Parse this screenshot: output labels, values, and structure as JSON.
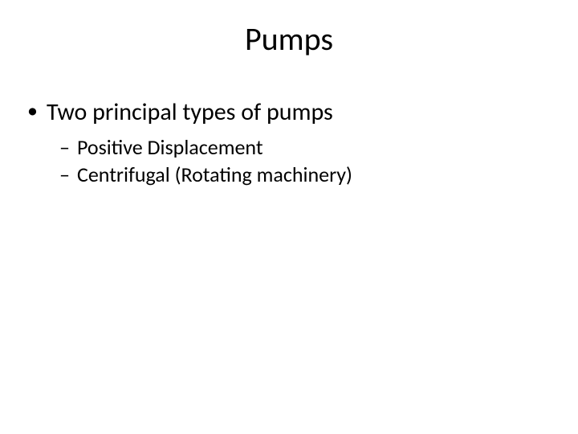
{
  "slide": {
    "title": "Pumps",
    "bullets": {
      "level1": {
        "item0": "Two principal types of pumps"
      },
      "level2": {
        "item0": "Positive Displacement",
        "item1": "Centrifugal (Rotating machinery)"
      }
    }
  },
  "style": {
    "background_color": "#ffffff",
    "text_color": "#000000",
    "title_fontsize": 40,
    "bullet_l1_fontsize": 30,
    "bullet_l2_fontsize": 26,
    "font_family": "Calibri"
  }
}
